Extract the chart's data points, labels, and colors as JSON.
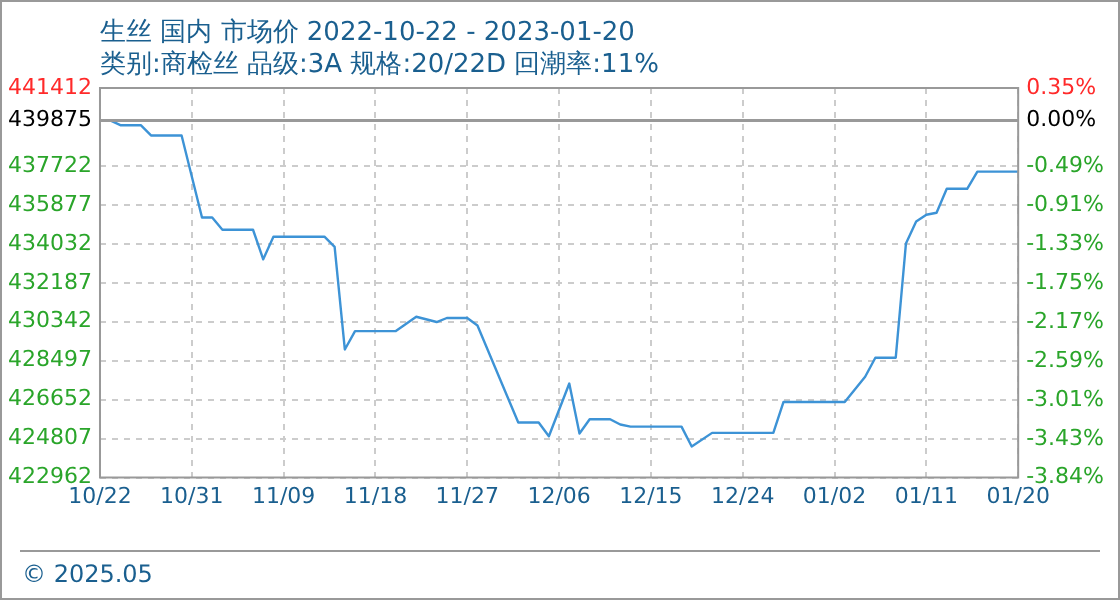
{
  "chart_data": {
    "type": "line",
    "title": "生丝 国内 市场价 2022-10-22 - 2023-01-20",
    "subtitle": "类别:商检丝 品级:3A 规格:20/22D 回潮率:11%",
    "annotations": [
      "© 2025.05"
    ],
    "x": [
      "2022-10-22",
      "2022-10-23",
      "2022-10-24",
      "2022-10-26",
      "2022-10-27",
      "2022-10-30",
      "2022-11-01",
      "2022-11-02",
      "2022-11-03",
      "2022-11-06",
      "2022-11-07",
      "2022-11-08",
      "2022-11-13",
      "2022-11-14",
      "2022-11-15",
      "2022-11-16",
      "2022-11-20",
      "2022-11-22",
      "2022-11-24",
      "2022-11-25",
      "2022-11-27",
      "2022-11-28",
      "2022-12-02",
      "2022-12-04",
      "2022-12-05",
      "2022-12-07",
      "2022-12-08",
      "2022-12-09",
      "2022-12-11",
      "2022-12-12",
      "2022-12-13",
      "2022-12-18",
      "2022-12-19",
      "2022-12-21",
      "2022-12-27",
      "2022-12-28",
      "2023-01-03",
      "2023-01-05",
      "2023-01-06",
      "2023-01-08",
      "2023-01-09",
      "2023-01-10",
      "2023-01-11",
      "2023-01-12",
      "2023-01-13",
      "2023-01-15",
      "2023-01-16",
      "2023-01-20"
    ],
    "series": [
      {
        "color": "#3d93d6",
        "values": [
          439875,
          439875,
          439650,
          439650,
          439166,
          439166,
          435282,
          435282,
          434700,
          434700,
          433300,
          434370,
          434370,
          433884,
          429030,
          429900,
          429900,
          430580,
          430330,
          430520,
          430520,
          430165,
          425572,
          425572,
          424920,
          427417,
          425050,
          425728,
          425728,
          425475,
          425378,
          425378,
          424436,
          425080,
          425080,
          426543,
          426543,
          427738,
          428640,
          428640,
          434049,
          435088,
          435408,
          435505,
          436640,
          436640,
          437450,
          437450
        ]
      }
    ],
    "xlim": [
      "2022-10-22",
      "2023-01-20"
    ],
    "xticks": [
      {
        "value": "2022-10-22",
        "label": "10/22"
      },
      {
        "value": "2022-10-31",
        "label": "10/31"
      },
      {
        "value": "2022-11-09",
        "label": "11/09"
      },
      {
        "value": "2022-11-18",
        "label": "11/18"
      },
      {
        "value": "2022-11-27",
        "label": "11/27"
      },
      {
        "value": "2022-12-06",
        "label": "12/06"
      },
      {
        "value": "2022-12-15",
        "label": "12/15"
      },
      {
        "value": "2022-12-24",
        "label": "12/24"
      },
      {
        "value": "2023-01-02",
        "label": "01/02"
      },
      {
        "value": "2023-01-11",
        "label": "01/11"
      },
      {
        "value": "2023-01-20",
        "label": "01/20"
      }
    ],
    "ylim": [
      422962,
      441412
    ],
    "yticks": [
      422962,
      424807,
      426652,
      428497,
      430342,
      432187,
      434032,
      435877,
      437722,
      439875,
      441412
    ],
    "y2lim": [
      -3.84,
      0.35
    ],
    "y2ticks": [
      {
        "value": -3.84,
        "label": "-3.84%"
      },
      {
        "value": -3.43,
        "label": "-3.43%"
      },
      {
        "value": -3.01,
        "label": "-3.01%"
      },
      {
        "value": -2.59,
        "label": "-2.59%"
      },
      {
        "value": -2.17,
        "label": "-2.17%"
      },
      {
        "value": -1.75,
        "label": "-1.75%"
      },
      {
        "value": -1.33,
        "label": "-1.33%"
      },
      {
        "value": -0.91,
        "label": "-0.91%"
      },
      {
        "value": -0.49,
        "label": "-0.49%"
      },
      {
        "value": 0,
        "label": "0.00%"
      },
      {
        "value": 0.35,
        "label": "0.35%"
      }
    ],
    "ref_lines": [
      {
        "axis": "y",
        "value": 439875,
        "color": "#999999"
      }
    ],
    "grid": true,
    "legend": false,
    "marker": "none",
    "line_style": "solid"
  }
}
